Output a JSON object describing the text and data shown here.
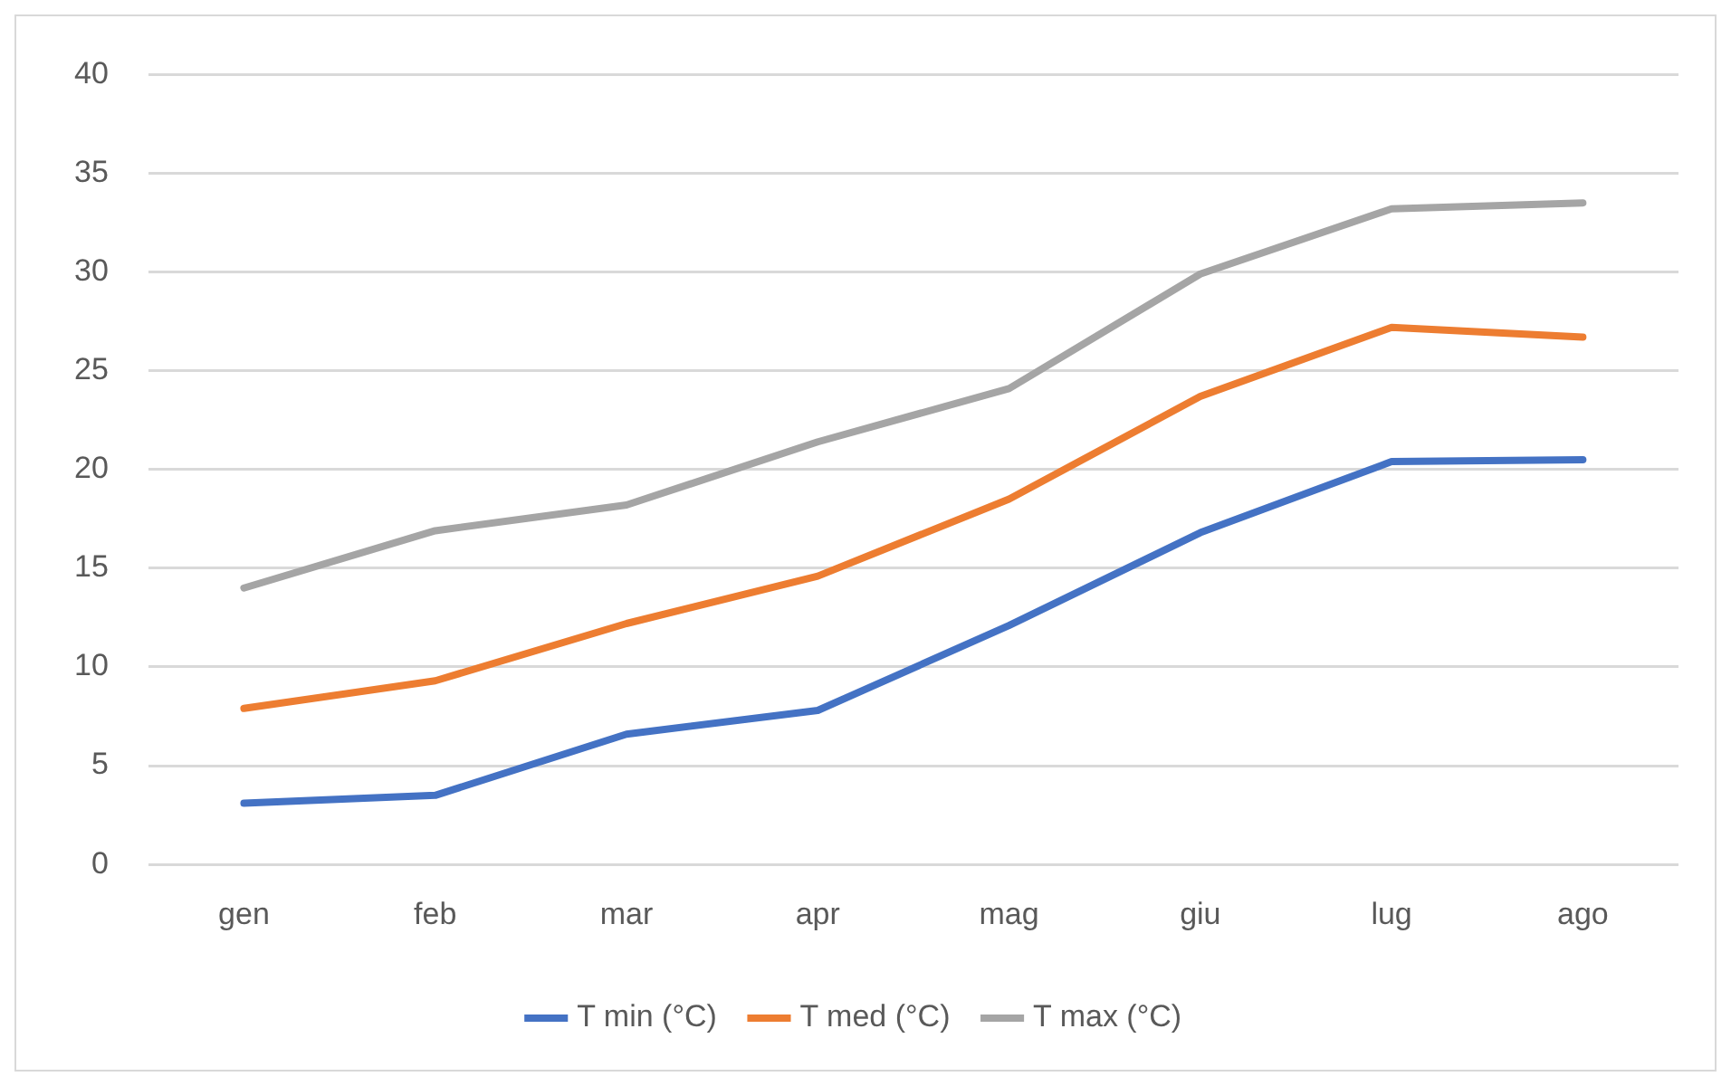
{
  "chart_data": {
    "type": "line",
    "categories": [
      "gen",
      "feb",
      "mar",
      "apr",
      "mag",
      "giu",
      "lug",
      "ago"
    ],
    "series": [
      {
        "name": "T min (°C)",
        "color": "#4472c4",
        "values": [
          3.1,
          3.5,
          6.6,
          7.8,
          12.1,
          16.8,
          20.4,
          20.5
        ]
      },
      {
        "name": "T med (°C)",
        "color": "#ed7d31",
        "values": [
          7.9,
          9.3,
          12.2,
          14.6,
          18.5,
          23.7,
          27.2,
          26.7
        ]
      },
      {
        "name": "T max (°C)",
        "color": "#a5a5a5",
        "values": [
          14.0,
          16.9,
          18.2,
          21.4,
          24.1,
          29.9,
          33.2,
          33.5
        ]
      }
    ],
    "ylim": [
      0,
      40
    ],
    "yticks": [
      0,
      5,
      10,
      15,
      20,
      25,
      30,
      35,
      40
    ],
    "grid": "y",
    "legend": "bottom",
    "marker": "none",
    "line_style": "solid"
  }
}
